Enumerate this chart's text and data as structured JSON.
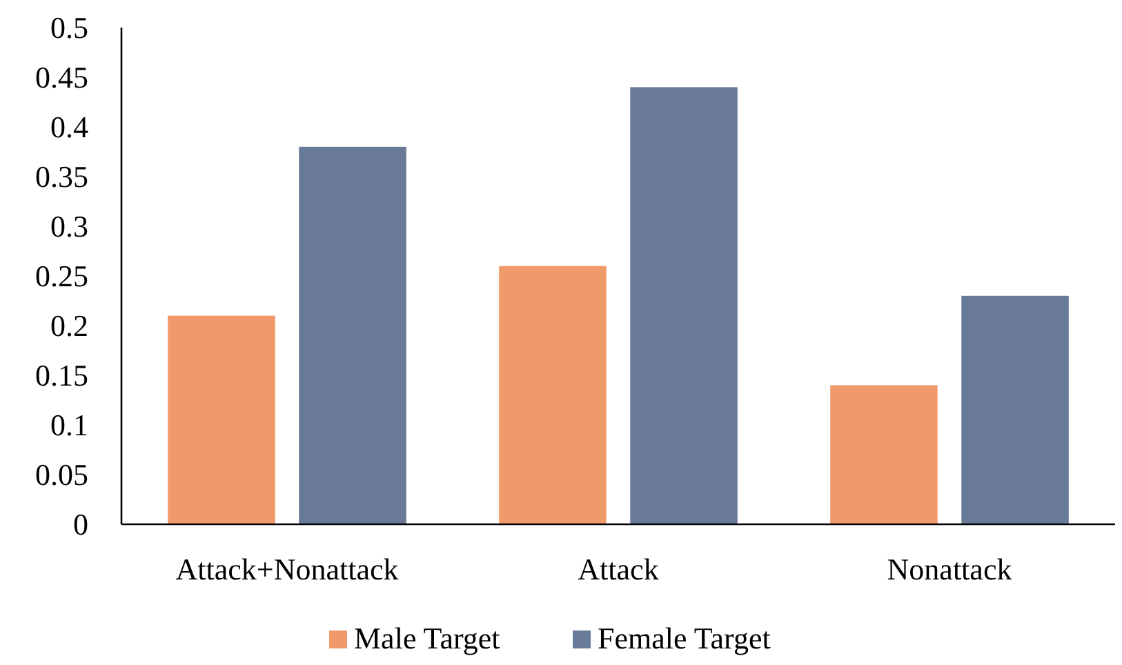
{
  "chart_data": {
    "type": "bar",
    "categories": [
      "Attack+Nonattack",
      "Attack",
      "Nonattack"
    ],
    "series": [
      {
        "name": "Male Target",
        "color": "#f0996a",
        "values": [
          0.21,
          0.26,
          0.14
        ]
      },
      {
        "name": "Female Target",
        "color": "#687a97",
        "values": [
          0.38,
          0.44,
          0.23
        ]
      }
    ],
    "ylim": [
      0,
      0.5
    ],
    "yticks": [
      0,
      0.05,
      0.1,
      0.15,
      0.2,
      0.25,
      0.3,
      0.35,
      0.4,
      0.45,
      0.5
    ],
    "grid": false,
    "legend": "bottom"
  }
}
